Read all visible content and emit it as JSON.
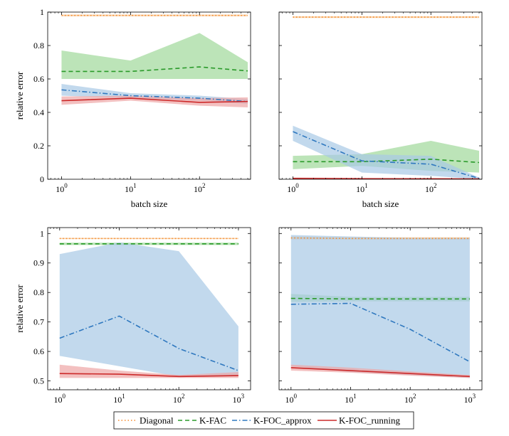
{
  "chart_data": [
    {
      "type": "line",
      "xscale": "log",
      "xlim": [
        0.63,
        550
      ],
      "ylim": [
        0,
        1
      ],
      "yticks": [
        0,
        0.2,
        0.4,
        0.6,
        0.8,
        1
      ],
      "ytick_labels": [
        "0",
        "0.2",
        "0.4",
        "0.6",
        "0.8",
        "1"
      ],
      "xticks": [
        1,
        10,
        100
      ],
      "xtick_labels": [
        {
          "base": "10",
          "exp": "0"
        },
        {
          "base": "10",
          "exp": "1"
        },
        {
          "base": "10",
          "exp": "2"
        }
      ],
      "xlabel": "batch size",
      "ylabel": "relative error",
      "series": [
        {
          "key": "diag",
          "x": [
            1,
            10,
            100,
            500
          ],
          "y": [
            0.98,
            0.98,
            0.98,
            0.98
          ],
          "lo": [
            0.975,
            0.975,
            0.975,
            0.975
          ],
          "hi": [
            0.985,
            0.985,
            0.985,
            0.985
          ]
        },
        {
          "key": "kfac",
          "x": [
            1,
            10,
            100,
            500
          ],
          "y": [
            0.645,
            0.645,
            0.672,
            0.648
          ],
          "lo": [
            0.6,
            0.6,
            0.6,
            0.6
          ],
          "hi": [
            0.77,
            0.71,
            0.875,
            0.7
          ]
        },
        {
          "key": "kfoc_approx",
          "x": [
            1,
            10,
            100,
            500
          ],
          "y": [
            0.535,
            0.5,
            0.485,
            0.465
          ],
          "lo": [
            0.5,
            0.485,
            0.47,
            0.45
          ],
          "hi": [
            0.57,
            0.515,
            0.5,
            0.48
          ]
        },
        {
          "key": "kfoc_running",
          "x": [
            1,
            10,
            100,
            500
          ],
          "y": [
            0.47,
            0.485,
            0.46,
            0.465
          ],
          "lo": [
            0.445,
            0.47,
            0.44,
            0.43
          ],
          "hi": [
            0.495,
            0.5,
            0.485,
            0.49
          ]
        }
      ]
    },
    {
      "type": "line",
      "xscale": "log",
      "xlim": [
        0.63,
        550
      ],
      "ylim": [
        0,
        1
      ],
      "yticks": [
        0,
        0.2,
        0.4,
        0.6,
        0.8,
        1
      ],
      "ytick_labels": [],
      "xticks": [
        1,
        10,
        100
      ],
      "xtick_labels": [
        {
          "base": "10",
          "exp": "0"
        },
        {
          "base": "10",
          "exp": "1"
        },
        {
          "base": "10",
          "exp": "2"
        }
      ],
      "xlabel": "batch size",
      "ylabel": "",
      "series": [
        {
          "key": "diag",
          "x": [
            1,
            10,
            100,
            500
          ],
          "y": [
            0.97,
            0.97,
            0.97,
            0.97
          ],
          "lo": [
            0.965,
            0.965,
            0.965,
            0.965
          ],
          "hi": [
            0.975,
            0.975,
            0.975,
            0.975
          ]
        },
        {
          "key": "kfac",
          "x": [
            1,
            10,
            100,
            500
          ],
          "y": [
            0.105,
            0.105,
            0.12,
            0.1
          ],
          "lo": [
            0.06,
            0.08,
            0.05,
            0.04
          ],
          "hi": [
            0.14,
            0.15,
            0.23,
            0.17
          ]
        },
        {
          "key": "kfoc_approx",
          "x": [
            1,
            10,
            100,
            500
          ],
          "y": [
            0.285,
            0.11,
            0.09,
            0.005
          ],
          "lo": [
            0.23,
            0.04,
            0.02,
            0.0
          ],
          "hi": [
            0.32,
            0.15,
            0.14,
            0.01
          ]
        },
        {
          "key": "kfoc_running",
          "x": [
            1,
            10,
            100,
            500
          ],
          "y": [
            0.005,
            0.003,
            0.003,
            0.002
          ],
          "lo": [
            0.0,
            0.0,
            0.0,
            0.0
          ],
          "hi": [
            0.01,
            0.008,
            0.006,
            0.005
          ]
        }
      ]
    },
    {
      "type": "line",
      "xscale": "log",
      "xlim": [
        0.63,
        1600
      ],
      "ylim": [
        0.47,
        1.02
      ],
      "yticks": [
        0.5,
        0.6,
        0.7,
        0.8,
        0.9,
        1
      ],
      "ytick_labels": [
        "0.5",
        "0.6",
        "0.7",
        "0.8",
        "0.9",
        "1"
      ],
      "xticks": [
        1,
        10,
        100,
        1000
      ],
      "xtick_labels": [
        {
          "base": "10",
          "exp": "0"
        },
        {
          "base": "10",
          "exp": "1"
        },
        {
          "base": "10",
          "exp": "2"
        },
        {
          "base": "10",
          "exp": "3"
        }
      ],
      "xlabel": "",
      "ylabel": "relative error",
      "series": [
        {
          "key": "diag",
          "x": [
            1,
            10,
            100,
            1000
          ],
          "y": [
            0.983,
            0.983,
            0.983,
            0.983
          ],
          "lo": [
            0.981,
            0.981,
            0.981,
            0.981
          ],
          "hi": [
            0.985,
            0.985,
            0.985,
            0.985
          ]
        },
        {
          "key": "kfac",
          "x": [
            1,
            10,
            100,
            1000
          ],
          "y": [
            0.965,
            0.965,
            0.965,
            0.965
          ],
          "lo": [
            0.961,
            0.961,
            0.961,
            0.961
          ],
          "hi": [
            0.969,
            0.969,
            0.969,
            0.969
          ]
        },
        {
          "key": "kfoc_approx",
          "x": [
            1,
            10,
            100,
            1000
          ],
          "y": [
            0.645,
            0.72,
            0.61,
            0.535
          ],
          "lo": [
            0.585,
            0.55,
            0.515,
            0.52
          ],
          "hi": [
            0.93,
            0.97,
            0.94,
            0.685
          ]
        },
        {
          "key": "kfoc_running",
          "x": [
            1,
            10,
            100,
            1000
          ],
          "y": [
            0.525,
            0.523,
            0.515,
            0.518
          ],
          "lo": [
            0.51,
            0.51,
            0.51,
            0.51
          ],
          "hi": [
            0.555,
            0.535,
            0.52,
            0.53
          ]
        }
      ]
    },
    {
      "type": "line",
      "xscale": "log",
      "xlim": [
        0.63,
        1600
      ],
      "ylim": [
        0.47,
        1.02
      ],
      "yticks": [
        0.5,
        0.6,
        0.7,
        0.8,
        0.9,
        1
      ],
      "ytick_labels": [],
      "xticks": [
        1,
        10,
        100,
        1000
      ],
      "xtick_labels": [
        {
          "base": "10",
          "exp": "0"
        },
        {
          "base": "10",
          "exp": "1"
        },
        {
          "base": "10",
          "exp": "2"
        },
        {
          "base": "10",
          "exp": "3"
        }
      ],
      "xlabel": "",
      "ylabel": "",
      "series": [
        {
          "key": "diag",
          "x": [
            1,
            10,
            100,
            1000
          ],
          "y": [
            0.985,
            0.983,
            0.983,
            0.983
          ],
          "lo": [
            0.98,
            0.98,
            0.98,
            0.98
          ],
          "hi": [
            0.99,
            0.987,
            0.987,
            0.987
          ]
        },
        {
          "key": "kfac",
          "x": [
            1,
            10,
            100,
            1000
          ],
          "y": [
            0.78,
            0.778,
            0.778,
            0.778
          ],
          "lo": [
            0.768,
            0.77,
            0.77,
            0.77
          ],
          "hi": [
            0.795,
            0.785,
            0.785,
            0.785
          ]
        },
        {
          "key": "kfoc_approx",
          "x": [
            1,
            10,
            100,
            1000
          ],
          "y": [
            0.76,
            0.763,
            0.675,
            0.565
          ],
          "lo": [
            0.55,
            0.53,
            0.52,
            0.51
          ],
          "hi": [
            0.995,
            0.99,
            0.985,
            0.985
          ]
        },
        {
          "key": "kfoc_running",
          "x": [
            1,
            10,
            100,
            1000
          ],
          "y": [
            0.545,
            0.535,
            0.525,
            0.515
          ],
          "lo": [
            0.535,
            0.528,
            0.518,
            0.51
          ],
          "hi": [
            0.555,
            0.545,
            0.532,
            0.52
          ]
        }
      ]
    }
  ],
  "legend": {
    "placement": "bottom-center",
    "items": [
      {
        "key": "diag",
        "label": "Diagonal"
      },
      {
        "key": "kfac",
        "label": "K-FAC"
      },
      {
        "key": "kfoc_approx",
        "label": "K-FOC_approx"
      },
      {
        "key": "kfoc_running",
        "label": "K-FOC_running"
      }
    ]
  },
  "styles": {
    "diag": {
      "color": "#f58a2a",
      "band": "#f5c08a",
      "dash": "1.5,3"
    },
    "kfac": {
      "color": "#2a9a2a",
      "band": "#9fd89a",
      "dash": "6,4"
    },
    "kfoc_approx": {
      "color": "#2f78bf",
      "band": "#a8c9e6",
      "dash": "7,3,1.5,3"
    },
    "kfoc_running": {
      "color": "#cc2a2a",
      "band": "#eea5a5",
      "dash": ""
    }
  }
}
